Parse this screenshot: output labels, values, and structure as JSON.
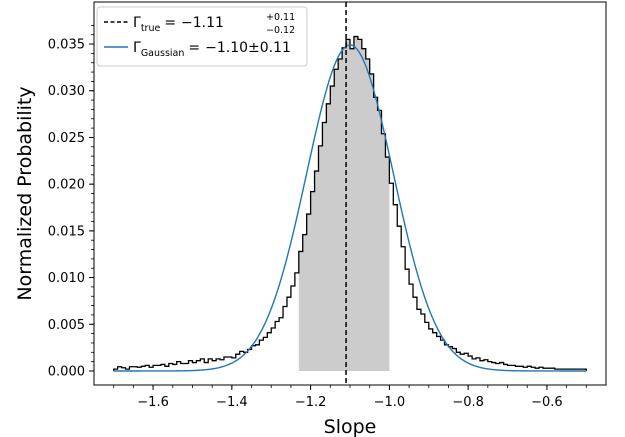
{
  "chart_data": {
    "type": "histogram",
    "title": "",
    "xlabel": "Slope",
    "ylabel": "Normalized Probability",
    "xlim": [
      -1.75,
      -0.45
    ],
    "ylim": [
      -0.0015,
      0.0395
    ],
    "xticks": [
      -1.6,
      -1.4,
      -1.2,
      -1.0,
      -0.8,
      -0.6
    ],
    "xtick_labels": [
      "−1.6",
      "−1.4",
      "−1.2",
      "−1.0",
      "−0.8",
      "−0.6"
    ],
    "yticks": [
      0.0,
      0.005,
      0.01,
      0.015,
      0.02,
      0.025,
      0.03,
      0.035
    ],
    "ytick_labels": [
      "0.000",
      "0.005",
      "0.010",
      "0.015",
      "0.020",
      "0.025",
      "0.030",
      "0.035"
    ],
    "grid": false,
    "legend_position": "top-left",
    "legend": [
      {
        "style": "dashed",
        "color": "#000000",
        "symbol": "Γ",
        "subscript": "true",
        "equals": "=",
        "value": "−1.11",
        "superscript": "+0.11",
        "lower": "−0.12"
      },
      {
        "style": "solid",
        "color": "#1f77b4",
        "symbol": "Γ",
        "subscript": "Gaussian",
        "equals": "=",
        "value": "−1.10±0.11"
      }
    ],
    "histogram": {
      "bin_width": 0.01,
      "range": [
        -1.7,
        -0.5
      ],
      "color": "#000000",
      "values": [
        0.0002,
        0.00045,
        0.00035,
        0.0002,
        0.00045,
        0.00045,
        0.0004,
        0.0005,
        0.0006,
        0.0004,
        0.0006,
        0.0006,
        0.0007,
        0.0005,
        0.0008,
        0.0007,
        0.001,
        0.0008,
        0.0008,
        0.0011,
        0.0009,
        0.0011,
        0.0013,
        0.0009,
        0.0013,
        0.0011,
        0.0013,
        0.0012,
        0.0015,
        0.0015,
        0.0014,
        0.0018,
        0.0021,
        0.002,
        0.0023,
        0.0027,
        0.0028,
        0.0033,
        0.0036,
        0.0041,
        0.0046,
        0.0053,
        0.0057,
        0.0069,
        0.0079,
        0.0091,
        0.0105,
        0.0128,
        0.0146,
        0.0168,
        0.0192,
        0.0214,
        0.0241,
        0.0266,
        0.0286,
        0.0305,
        0.0323,
        0.0334,
        0.0346,
        0.0355,
        0.0345,
        0.0358,
        0.0355,
        0.0345,
        0.0334,
        0.0318,
        0.0293,
        0.0279,
        0.0254,
        0.0229,
        0.0201,
        0.0178,
        0.0155,
        0.0133,
        0.0109,
        0.0093,
        0.0079,
        0.0066,
        0.0061,
        0.0052,
        0.0045,
        0.0041,
        0.0037,
        0.0033,
        0.0028,
        0.0026,
        0.0024,
        0.002,
        0.0018,
        0.0019,
        0.0016,
        0.0013,
        0.0014,
        0.0011,
        0.0012,
        0.001,
        0.0009,
        0.0008,
        0.0009,
        0.0007,
        0.0006,
        0.0006,
        0.0005,
        0.0005,
        0.0004,
        0.0005,
        0.0004,
        0.0003,
        0.0004,
        0.0003,
        0.0003,
        0.0003,
        0.0002,
        0.0002,
        0.0002,
        0.0002,
        0.0002,
        0.0002,
        0.0002,
        0.0002
      ]
    },
    "gaussian": {
      "mean": -1.1,
      "sigma": 0.11,
      "peak": 0.0349,
      "range": [
        -1.7,
        -0.5
      ],
      "color": "#1f77b4"
    },
    "shaded_interval": {
      "x_from": -1.23,
      "x_to": -1.0,
      "color": "#cccccc"
    },
    "vline": {
      "x": -1.11,
      "color": "#000000",
      "style": "dashed"
    }
  }
}
